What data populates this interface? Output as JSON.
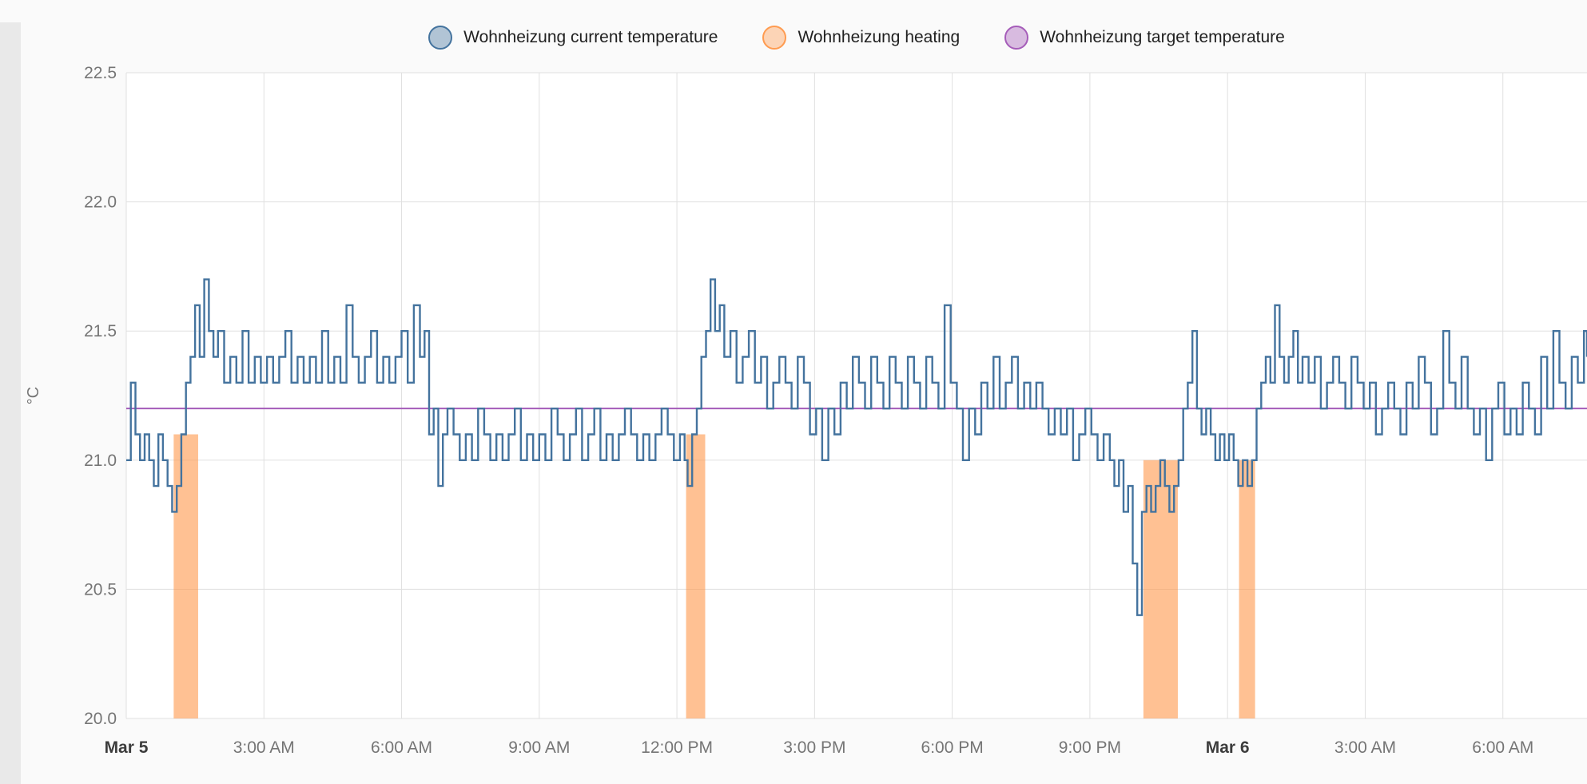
{
  "legend": {
    "items": [
      {
        "label": "Wohnheizung current temperature",
        "color": "#44739e"
      },
      {
        "label": "Wohnheizung heating",
        "color": "#ff9b50"
      },
      {
        "label": "Wohnheizung target temperature",
        "color": "#a55cb9"
      }
    ]
  },
  "chart_data": {
    "type": "line",
    "title": "",
    "xlabel": "",
    "ylabel": "°C",
    "legend_position": "top",
    "grid": true,
    "ylim": [
      20.0,
      22.5
    ],
    "xlim_minutes": [
      0,
      1910
    ],
    "x_unit": "minutes since Mar 5 12:00 AM",
    "yticks": [
      {
        "v": 20.0,
        "label": "20.0"
      },
      {
        "v": 20.5,
        "label": "20.5"
      },
      {
        "v": 21.0,
        "label": "21.0"
      },
      {
        "v": 21.5,
        "label": "21.5"
      },
      {
        "v": 22.0,
        "label": "22.0"
      },
      {
        "v": 22.5,
        "label": "22.5"
      }
    ],
    "xticks": [
      {
        "t": 0,
        "label": "Mar 5",
        "emph": true
      },
      {
        "t": 180,
        "label": "3:00 AM"
      },
      {
        "t": 360,
        "label": "6:00 AM"
      },
      {
        "t": 540,
        "label": "9:00 AM"
      },
      {
        "t": 720,
        "label": "12:00 PM"
      },
      {
        "t": 900,
        "label": "3:00 PM"
      },
      {
        "t": 1080,
        "label": "6:00 PM"
      },
      {
        "t": 1260,
        "label": "9:00 PM"
      },
      {
        "t": 1440,
        "label": "Mar 6",
        "emph": true
      },
      {
        "t": 1620,
        "label": "3:00 AM"
      },
      {
        "t": 1800,
        "label": "6:00 AM"
      }
    ],
    "series": [
      {
        "name": "Wohnheizung current temperature",
        "render": "step-line",
        "color": "#44739e",
        "points": [
          [
            0,
            21.0
          ],
          [
            6,
            21.3
          ],
          [
            12,
            21.1
          ],
          [
            18,
            21.0
          ],
          [
            24,
            21.1
          ],
          [
            30,
            21.0
          ],
          [
            36,
            20.9
          ],
          [
            42,
            21.1
          ],
          [
            48,
            21.0
          ],
          [
            54,
            20.9
          ],
          [
            60,
            20.8
          ],
          [
            66,
            20.9
          ],
          [
            72,
            21.1
          ],
          [
            78,
            21.3
          ],
          [
            84,
            21.4
          ],
          [
            90,
            21.6
          ],
          [
            96,
            21.4
          ],
          [
            102,
            21.7
          ],
          [
            108,
            21.5
          ],
          [
            114,
            21.4
          ],
          [
            120,
            21.5
          ],
          [
            128,
            21.3
          ],
          [
            136,
            21.4
          ],
          [
            144,
            21.3
          ],
          [
            152,
            21.5
          ],
          [
            160,
            21.3
          ],
          [
            168,
            21.4
          ],
          [
            176,
            21.3
          ],
          [
            184,
            21.4
          ],
          [
            192,
            21.3
          ],
          [
            200,
            21.4
          ],
          [
            208,
            21.5
          ],
          [
            216,
            21.3
          ],
          [
            224,
            21.4
          ],
          [
            232,
            21.3
          ],
          [
            240,
            21.4
          ],
          [
            248,
            21.3
          ],
          [
            256,
            21.5
          ],
          [
            264,
            21.3
          ],
          [
            272,
            21.4
          ],
          [
            280,
            21.3
          ],
          [
            288,
            21.6
          ],
          [
            296,
            21.4
          ],
          [
            304,
            21.3
          ],
          [
            312,
            21.4
          ],
          [
            320,
            21.5
          ],
          [
            328,
            21.3
          ],
          [
            336,
            21.4
          ],
          [
            344,
            21.3
          ],
          [
            352,
            21.4
          ],
          [
            360,
            21.5
          ],
          [
            368,
            21.3
          ],
          [
            376,
            21.6
          ],
          [
            384,
            21.4
          ],
          [
            390,
            21.5
          ],
          [
            396,
            21.1
          ],
          [
            402,
            21.2
          ],
          [
            408,
            20.9
          ],
          [
            414,
            21.1
          ],
          [
            420,
            21.2
          ],
          [
            428,
            21.1
          ],
          [
            436,
            21.0
          ],
          [
            444,
            21.1
          ],
          [
            452,
            21.0
          ],
          [
            460,
            21.2
          ],
          [
            468,
            21.1
          ],
          [
            476,
            21.0
          ],
          [
            484,
            21.1
          ],
          [
            492,
            21.0
          ],
          [
            500,
            21.1
          ],
          [
            508,
            21.2
          ],
          [
            516,
            21.0
          ],
          [
            524,
            21.1
          ],
          [
            532,
            21.0
          ],
          [
            540,
            21.1
          ],
          [
            548,
            21.0
          ],
          [
            556,
            21.2
          ],
          [
            564,
            21.1
          ],
          [
            572,
            21.0
          ],
          [
            580,
            21.1
          ],
          [
            588,
            21.2
          ],
          [
            596,
            21.0
          ],
          [
            604,
            21.1
          ],
          [
            612,
            21.2
          ],
          [
            620,
            21.0
          ],
          [
            628,
            21.1
          ],
          [
            636,
            21.0
          ],
          [
            644,
            21.1
          ],
          [
            652,
            21.2
          ],
          [
            660,
            21.1
          ],
          [
            668,
            21.0
          ],
          [
            676,
            21.1
          ],
          [
            684,
            21.0
          ],
          [
            692,
            21.1
          ],
          [
            700,
            21.2
          ],
          [
            708,
            21.1
          ],
          [
            716,
            21.0
          ],
          [
            724,
            21.1
          ],
          [
            730,
            21.0
          ],
          [
            734,
            20.9
          ],
          [
            740,
            21.1
          ],
          [
            746,
            21.2
          ],
          [
            752,
            21.4
          ],
          [
            758,
            21.5
          ],
          [
            764,
            21.7
          ],
          [
            770,
            21.5
          ],
          [
            776,
            21.6
          ],
          [
            782,
            21.4
          ],
          [
            790,
            21.5
          ],
          [
            798,
            21.3
          ],
          [
            806,
            21.4
          ],
          [
            814,
            21.5
          ],
          [
            822,
            21.3
          ],
          [
            830,
            21.4
          ],
          [
            838,
            21.2
          ],
          [
            846,
            21.3
          ],
          [
            854,
            21.4
          ],
          [
            862,
            21.3
          ],
          [
            870,
            21.2
          ],
          [
            878,
            21.4
          ],
          [
            886,
            21.3
          ],
          [
            894,
            21.1
          ],
          [
            902,
            21.2
          ],
          [
            910,
            21.0
          ],
          [
            918,
            21.2
          ],
          [
            926,
            21.1
          ],
          [
            934,
            21.3
          ],
          [
            942,
            21.2
          ],
          [
            950,
            21.4
          ],
          [
            958,
            21.3
          ],
          [
            966,
            21.2
          ],
          [
            974,
            21.4
          ],
          [
            982,
            21.3
          ],
          [
            990,
            21.2
          ],
          [
            998,
            21.4
          ],
          [
            1006,
            21.3
          ],
          [
            1014,
            21.2
          ],
          [
            1022,
            21.4
          ],
          [
            1030,
            21.3
          ],
          [
            1038,
            21.2
          ],
          [
            1046,
            21.4
          ],
          [
            1054,
            21.3
          ],
          [
            1062,
            21.2
          ],
          [
            1070,
            21.6
          ],
          [
            1078,
            21.3
          ],
          [
            1086,
            21.2
          ],
          [
            1094,
            21.0
          ],
          [
            1102,
            21.2
          ],
          [
            1110,
            21.1
          ],
          [
            1118,
            21.3
          ],
          [
            1126,
            21.2
          ],
          [
            1134,
            21.4
          ],
          [
            1142,
            21.2
          ],
          [
            1150,
            21.3
          ],
          [
            1158,
            21.4
          ],
          [
            1166,
            21.2
          ],
          [
            1174,
            21.3
          ],
          [
            1182,
            21.2
          ],
          [
            1190,
            21.3
          ],
          [
            1198,
            21.2
          ],
          [
            1206,
            21.1
          ],
          [
            1214,
            21.2
          ],
          [
            1222,
            21.1
          ],
          [
            1230,
            21.2
          ],
          [
            1238,
            21.0
          ],
          [
            1246,
            21.1
          ],
          [
            1254,
            21.2
          ],
          [
            1262,
            21.1
          ],
          [
            1270,
            21.0
          ],
          [
            1278,
            21.1
          ],
          [
            1286,
            21.0
          ],
          [
            1292,
            20.9
          ],
          [
            1298,
            21.0
          ],
          [
            1304,
            20.8
          ],
          [
            1310,
            20.9
          ],
          [
            1316,
            20.6
          ],
          [
            1322,
            20.4
          ],
          [
            1328,
            20.8
          ],
          [
            1334,
            20.9
          ],
          [
            1340,
            20.8
          ],
          [
            1346,
            20.9
          ],
          [
            1352,
            21.0
          ],
          [
            1358,
            20.9
          ],
          [
            1364,
            20.8
          ],
          [
            1370,
            20.9
          ],
          [
            1376,
            21.0
          ],
          [
            1382,
            21.2
          ],
          [
            1388,
            21.3
          ],
          [
            1394,
            21.5
          ],
          [
            1400,
            21.2
          ],
          [
            1406,
            21.1
          ],
          [
            1412,
            21.2
          ],
          [
            1418,
            21.1
          ],
          [
            1424,
            21.0
          ],
          [
            1430,
            21.1
          ],
          [
            1436,
            21.0
          ],
          [
            1442,
            21.1
          ],
          [
            1448,
            21.0
          ],
          [
            1454,
            20.9
          ],
          [
            1460,
            21.0
          ],
          [
            1466,
            20.9
          ],
          [
            1472,
            21.0
          ],
          [
            1478,
            21.2
          ],
          [
            1484,
            21.3
          ],
          [
            1490,
            21.4
          ],
          [
            1496,
            21.3
          ],
          [
            1502,
            21.6
          ],
          [
            1508,
            21.4
          ],
          [
            1514,
            21.3
          ],
          [
            1520,
            21.4
          ],
          [
            1526,
            21.5
          ],
          [
            1532,
            21.3
          ],
          [
            1538,
            21.4
          ],
          [
            1546,
            21.3
          ],
          [
            1554,
            21.4
          ],
          [
            1562,
            21.2
          ],
          [
            1570,
            21.3
          ],
          [
            1578,
            21.4
          ],
          [
            1586,
            21.3
          ],
          [
            1594,
            21.2
          ],
          [
            1602,
            21.4
          ],
          [
            1610,
            21.3
          ],
          [
            1618,
            21.2
          ],
          [
            1626,
            21.3
          ],
          [
            1634,
            21.1
          ],
          [
            1642,
            21.2
          ],
          [
            1650,
            21.3
          ],
          [
            1658,
            21.2
          ],
          [
            1666,
            21.1
          ],
          [
            1674,
            21.3
          ],
          [
            1682,
            21.2
          ],
          [
            1690,
            21.4
          ],
          [
            1698,
            21.3
          ],
          [
            1706,
            21.1
          ],
          [
            1714,
            21.2
          ],
          [
            1722,
            21.5
          ],
          [
            1730,
            21.3
          ],
          [
            1738,
            21.2
          ],
          [
            1746,
            21.4
          ],
          [
            1754,
            21.2
          ],
          [
            1762,
            21.1
          ],
          [
            1770,
            21.2
          ],
          [
            1778,
            21.0
          ],
          [
            1786,
            21.2
          ],
          [
            1794,
            21.3
          ],
          [
            1802,
            21.1
          ],
          [
            1810,
            21.2
          ],
          [
            1818,
            21.1
          ],
          [
            1826,
            21.3
          ],
          [
            1834,
            21.2
          ],
          [
            1842,
            21.1
          ],
          [
            1850,
            21.4
          ],
          [
            1858,
            21.2
          ],
          [
            1866,
            21.5
          ],
          [
            1874,
            21.3
          ],
          [
            1882,
            21.2
          ],
          [
            1890,
            21.4
          ],
          [
            1898,
            21.3
          ],
          [
            1906,
            21.5
          ],
          [
            1910,
            21.4
          ]
        ]
      },
      {
        "name": "Wohnheizung heating",
        "render": "bars",
        "color": "#ff9b50",
        "opacity": 0.62,
        "baseline": 20.0,
        "intervals": [
          {
            "start": 62,
            "end": 94,
            "top": 21.1
          },
          {
            "start": 732,
            "end": 757,
            "top": 21.1
          },
          {
            "start": 1330,
            "end": 1375,
            "top": 21.0
          },
          {
            "start": 1455,
            "end": 1476,
            "top": 21.0
          }
        ]
      },
      {
        "name": "Wohnheizung target temperature",
        "render": "line",
        "color": "#a55cb9",
        "points": [
          [
            0,
            21.2
          ],
          [
            1910,
            21.2
          ]
        ]
      }
    ]
  }
}
